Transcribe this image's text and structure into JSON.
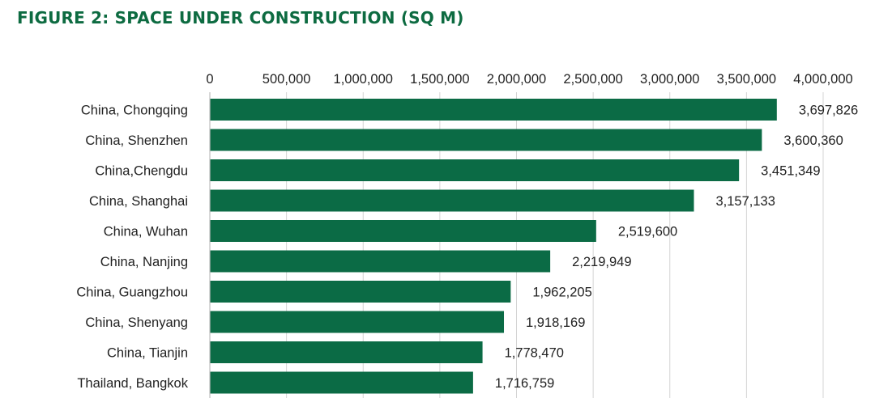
{
  "title": "FIGURE 2: SPACE UNDER CONSTRUCTION (SQ M)",
  "colors": {
    "title": "#0d6b41",
    "bar": "#0b6b45"
  },
  "chart_data": {
    "type": "bar",
    "orientation": "horizontal",
    "title": "FIGURE 2: SPACE UNDER CONSTRUCTION (SQ M)",
    "xlabel": "",
    "ylabel": "",
    "xlim": [
      0,
      4000000
    ],
    "x_axis_position": "top",
    "grid": true,
    "legend": "none",
    "x_ticks": [
      "0",
      "500,000",
      "1,000,000",
      "1,500,000",
      "2,000,000",
      "2,500,000",
      "3,000,000",
      "3,500,000",
      "4,000,000"
    ],
    "categories": [
      "China, Chongqing",
      "China, Shenzhen",
      "China,Chengdu",
      "China, Shanghai",
      "China, Wuhan",
      "China, Nanjing",
      "China, Guangzhou",
      "China, Shenyang",
      "China, Tianjin",
      "Thailand, Bangkok"
    ],
    "values": [
      3697826,
      3600360,
      3451349,
      3157133,
      2519600,
      2219949,
      1962205,
      1918169,
      1778470,
      1716759
    ],
    "value_labels": [
      "3,697,826",
      "3,600,360",
      "3,451,349",
      "3,157,133",
      "2,519,600",
      "2,219,949",
      "1,962,205",
      "1,918,169",
      "1,778,470",
      "1,716,759"
    ]
  }
}
